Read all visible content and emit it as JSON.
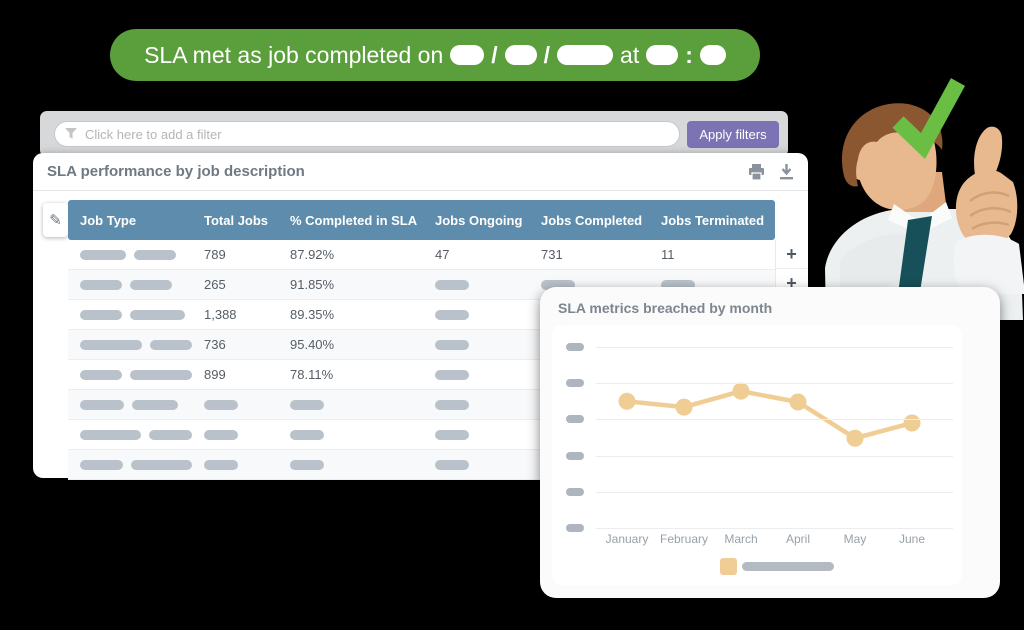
{
  "banner": {
    "prefix": "SLA met as job completed on",
    "slash": "/",
    "at": "at",
    "colon": ":",
    "redacted_date_pill_widths": [
      34,
      32,
      56
    ],
    "redacted_time_pill_widths": [
      32,
      26
    ]
  },
  "filter_bar": {
    "placeholder": "Click here to add a filter",
    "apply_label": "Apply filters"
  },
  "table_panel": {
    "title": "SLA performance by job description",
    "columns": [
      "Job Type",
      "Total Jobs",
      "% Completed in SLA",
      "Jobs Ongoing",
      "Jobs Completed",
      "Jobs Terminated"
    ],
    "add_label": "+",
    "rows": [
      {
        "job_type_pills": [
          46,
          42
        ],
        "cells": [
          "789",
          "87.92%",
          "47",
          "731",
          "11"
        ]
      },
      {
        "job_type_pills": [
          42,
          42
        ],
        "cells": [
          "265",
          "91.85%",
          null,
          null,
          null
        ]
      },
      {
        "job_type_pills": [
          42,
          55
        ],
        "cells": [
          "1,388",
          "89.35%",
          null,
          null,
          null
        ]
      },
      {
        "job_type_pills": [
          66,
          44
        ],
        "cells": [
          "736",
          "95.40%",
          null,
          null,
          null
        ]
      },
      {
        "job_type_pills": [
          46,
          69
        ],
        "cells": [
          "899",
          "78.11%",
          null,
          null,
          null
        ]
      },
      {
        "job_type_pills": [
          44,
          46
        ],
        "cells": [
          null,
          null,
          null,
          null,
          null
        ]
      },
      {
        "job_type_pills": [
          65,
          45
        ],
        "cells": [
          null,
          null,
          null,
          null,
          null
        ]
      },
      {
        "job_type_pills": [
          46,
          64
        ],
        "cells": [
          null,
          null,
          null,
          null,
          null
        ]
      }
    ]
  },
  "chart_panel": {
    "title": "SLA metrics breached by month"
  },
  "chart_data": {
    "type": "line",
    "title": "SLA metrics breached by month",
    "categories": [
      "January",
      "February",
      "March",
      "April",
      "May",
      "June"
    ],
    "series": [
      {
        "name": "",
        "values": [
          17.5,
          16.7,
          18.9,
          17.4,
          12.4,
          14.5
        ]
      }
    ],
    "ylim": [
      0,
      25
    ],
    "y_gridline_values": [
      25,
      20,
      15,
      10,
      5,
      0
    ],
    "y_tick_labels_redacted": true,
    "legend_label_redacted": true,
    "legend_position": "bottom",
    "grid": true,
    "xlabel": "",
    "ylabel": "",
    "line_color": "#f0cd94"
  },
  "colors": {
    "banner_green": "#5b9e3c",
    "apply_purple": "#7c73b4",
    "header_blue": "#5e8cac",
    "line_tan": "#f0cd94",
    "check_green": "#6abe44",
    "pill_gray": "#b9c1ca"
  }
}
